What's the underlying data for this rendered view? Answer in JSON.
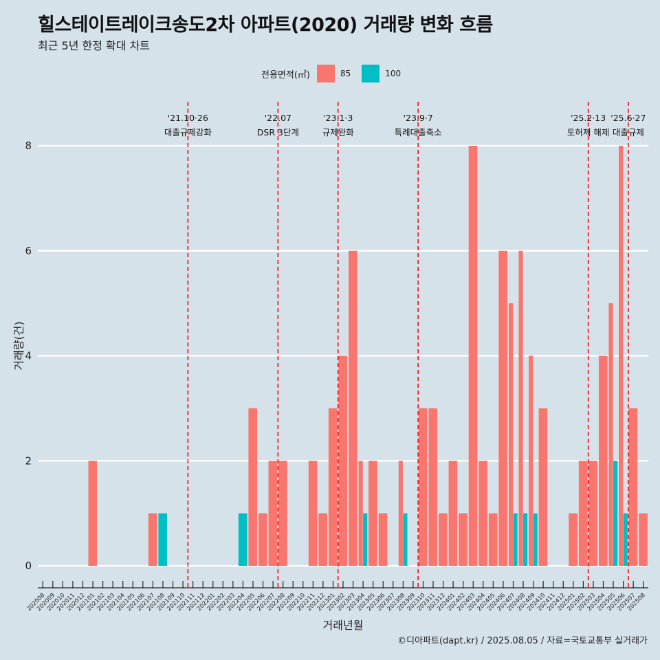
{
  "title": "힐스테이트레이크송도2차 아파트(2020) 거래량 변화 흐름",
  "subtitle": "최근 5년 한정 확대 차트",
  "caption": "©디아파트(dapt.kr) / 2025.08.05 / 자료=국토교통부 실거래가",
  "colors": {
    "85": "#f8766d",
    "100": "#00bfc4",
    "vline": "#ee1111",
    "background": "#d6e2ea",
    "grid": "#ffffff"
  },
  "chart_data": {
    "type": "bar",
    "xlabel": "거래년월",
    "ylabel": "거래량(건)",
    "ylim": [
      0,
      8
    ],
    "yticks": [
      0,
      2,
      4,
      6,
      8
    ],
    "legend": {
      "title": "전용면적(㎡)",
      "entries": [
        "85",
        "100"
      ],
      "position": "top"
    },
    "grid": "horizontal",
    "categories": [
      "202008",
      "202009",
      "202010",
      "202011",
      "202012",
      "202101",
      "202102",
      "202103",
      "202104",
      "202105",
      "202106",
      "202107",
      "202108",
      "202109",
      "202110",
      "202111",
      "202112",
      "202201",
      "202202",
      "202203",
      "202204",
      "202205",
      "202206",
      "202207",
      "202208",
      "202209",
      "202210",
      "202211",
      "202212",
      "202301",
      "202302",
      "202303",
      "202304",
      "202305",
      "202306",
      "202307",
      "202308",
      "202309",
      "202310",
      "202311",
      "202312",
      "202401",
      "202402",
      "202403",
      "202404",
      "202405",
      "202406",
      "202407",
      "202408",
      "202409",
      "202410",
      "202411",
      "202412",
      "202501",
      "202502",
      "202503",
      "202504",
      "202505",
      "202506",
      "202507",
      "202508"
    ],
    "series": [
      {
        "name": "85",
        "values": [
          0,
          0,
          0,
          0,
          0,
          2,
          0,
          0,
          0,
          0,
          0,
          1,
          0,
          0,
          0,
          0,
          0,
          0,
          0,
          0,
          0,
          3,
          1,
          2,
          2,
          0,
          0,
          2,
          1,
          3,
          4,
          6,
          2,
          2,
          1,
          0,
          2,
          0,
          3,
          3,
          1,
          2,
          1,
          8,
          2,
          1,
          6,
          5,
          6,
          4,
          3,
          0,
          0,
          1,
          2,
          2,
          4,
          5,
          8,
          3,
          1
        ]
      },
      {
        "name": "100",
        "values": [
          0,
          0,
          0,
          0,
          0,
          0,
          0,
          0,
          0,
          0,
          0,
          0,
          1,
          0,
          0,
          0,
          0,
          0,
          0,
          0,
          1,
          0,
          0,
          0,
          0,
          0,
          0,
          0,
          0,
          0,
          0,
          0,
          1,
          0,
          0,
          0,
          1,
          0,
          0,
          0,
          0,
          0,
          0,
          0,
          0,
          0,
          0,
          1,
          1,
          1,
          0,
          0,
          0,
          0,
          0,
          0,
          0,
          2,
          1,
          0,
          0
        ]
      }
    ],
    "annotations": [
      {
        "date": "'21.10·26",
        "label": "대출규제강화",
        "after": "202110"
      },
      {
        "date": "'22.07",
        "label": "DSR 3단계",
        "after": "202207"
      },
      {
        "date": "'23.1·3",
        "label": "규제완화",
        "after": "202301"
      },
      {
        "date": "'23.9·7",
        "label": "특례대출축소",
        "after": "202309"
      },
      {
        "date": "'25.2·13",
        "label": "토허제 해제",
        "after": "202502"
      },
      {
        "date": "'25.6·27",
        "label": "대출규제",
        "after": "202506"
      }
    ]
  }
}
